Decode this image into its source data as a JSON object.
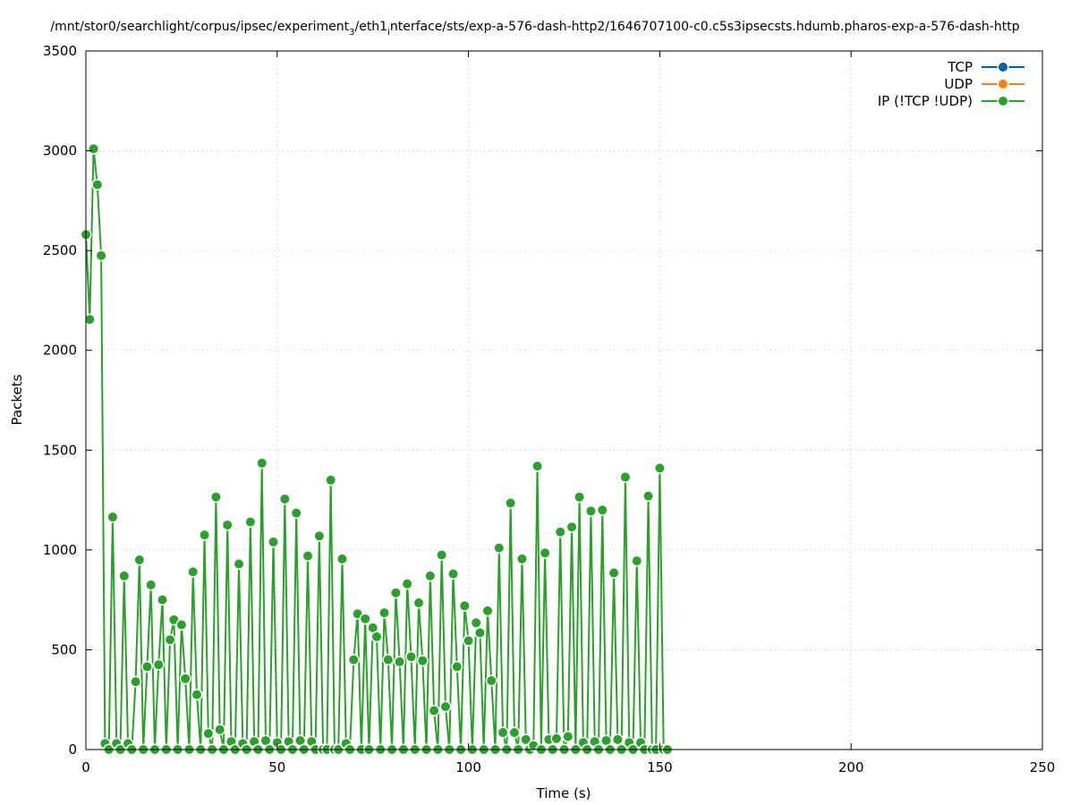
{
  "chart_data": {
    "type": "line",
    "title": "/mnt/stor0/searchlight/corpus/ipsec/experiment_3/eth1_interface/sts/exp-a-576-dash-http2/1646707100-c0.c5s3ipsecsts.hdumb.pharos-exp-a-576-dash-http",
    "title_parts": [
      "/mnt/stor0/searchlight/corpus/ipsec/experiment",
      "3",
      "/eth1",
      "i",
      "nterface/sts/exp-a-576-dash-http2/1646707100-c0.c5s3ipsecsts.hdumb.pharos-exp-a-576-dash-http"
    ],
    "xlabel": "Time (s)",
    "ylabel": "Packets",
    "xlim": [
      0,
      250
    ],
    "ylim": [
      0,
      3500
    ],
    "xticks": [
      0,
      50,
      100,
      150,
      200,
      250
    ],
    "yticks": [
      0,
      500,
      1000,
      1500,
      2000,
      2500,
      3000,
      3500
    ],
    "grid": true,
    "legend_position": "top-right",
    "series": [
      {
        "name": "TCP",
        "color": "#0060ad",
        "points": []
      },
      {
        "name": "UDP",
        "color": "#ff7f0e",
        "points": []
      },
      {
        "name": "IP (!TCP  !UDP)",
        "color": "#2ca02c",
        "points": [
          [
            0,
            2580
          ],
          [
            1,
            2155
          ],
          [
            2,
            3010
          ],
          [
            3,
            2830
          ],
          [
            4,
            2475
          ],
          [
            5,
            30
          ],
          [
            6,
            0
          ],
          [
            7,
            1165
          ],
          [
            8,
            30
          ],
          [
            9,
            0
          ],
          [
            10,
            870
          ],
          [
            11,
            30
          ],
          [
            12,
            0
          ],
          [
            13,
            340
          ],
          [
            14,
            950
          ],
          [
            15,
            0
          ],
          [
            16,
            415
          ],
          [
            17,
            825
          ],
          [
            18,
            0
          ],
          [
            19,
            425
          ],
          [
            20,
            750
          ],
          [
            21,
            0
          ],
          [
            22,
            550
          ],
          [
            23,
            650
          ],
          [
            24,
            0
          ],
          [
            25,
            625
          ],
          [
            26,
            355
          ],
          [
            27,
            0
          ],
          [
            28,
            890
          ],
          [
            29,
            275
          ],
          [
            30,
            0
          ],
          [
            31,
            1075
          ],
          [
            32,
            80
          ],
          [
            33,
            0
          ],
          [
            34,
            1265
          ],
          [
            35,
            100
          ],
          [
            36,
            0
          ],
          [
            37,
            1125
          ],
          [
            38,
            40
          ],
          [
            39,
            0
          ],
          [
            40,
            930
          ],
          [
            41,
            30
          ],
          [
            42,
            0
          ],
          [
            43,
            1140
          ],
          [
            44,
            40
          ],
          [
            45,
            0
          ],
          [
            46,
            1435
          ],
          [
            47,
            45
          ],
          [
            48,
            0
          ],
          [
            49,
            1040
          ],
          [
            50,
            35
          ],
          [
            51,
            0
          ],
          [
            52,
            1255
          ],
          [
            53,
            40
          ],
          [
            54,
            0
          ],
          [
            55,
            1185
          ],
          [
            56,
            45
          ],
          [
            57,
            0
          ],
          [
            58,
            970
          ],
          [
            59,
            40
          ],
          [
            60,
            0
          ],
          [
            61,
            1070
          ],
          [
            62,
            0
          ],
          [
            63,
            0
          ],
          [
            64,
            1350
          ],
          [
            65,
            0
          ],
          [
            66,
            0
          ],
          [
            67,
            955
          ],
          [
            68,
            30
          ],
          [
            69,
            0
          ],
          [
            70,
            450
          ],
          [
            71,
            680
          ],
          [
            72,
            0
          ],
          [
            73,
            655
          ],
          [
            74,
            0
          ],
          [
            75,
            610
          ],
          [
            76,
            565
          ],
          [
            77,
            0
          ],
          [
            78,
            685
          ],
          [
            79,
            450
          ],
          [
            80,
            0
          ],
          [
            81,
            785
          ],
          [
            82,
            440
          ],
          [
            83,
            0
          ],
          [
            84,
            830
          ],
          [
            85,
            465
          ],
          [
            86,
            0
          ],
          [
            87,
            735
          ],
          [
            88,
            445
          ],
          [
            89,
            0
          ],
          [
            90,
            870
          ],
          [
            91,
            195
          ],
          [
            92,
            0
          ],
          [
            93,
            975
          ],
          [
            94,
            215
          ],
          [
            95,
            0
          ],
          [
            96,
            880
          ],
          [
            97,
            415
          ],
          [
            98,
            0
          ],
          [
            99,
            720
          ],
          [
            100,
            545
          ],
          [
            101,
            0
          ],
          [
            102,
            635
          ],
          [
            103,
            585
          ],
          [
            104,
            0
          ],
          [
            105,
            695
          ],
          [
            106,
            345
          ],
          [
            107,
            0
          ],
          [
            108,
            1010
          ],
          [
            109,
            85
          ],
          [
            110,
            0
          ],
          [
            111,
            1235
          ],
          [
            112,
            85
          ],
          [
            113,
            0
          ],
          [
            114,
            955
          ],
          [
            115,
            50
          ],
          [
            116,
            0
          ],
          [
            117,
            20
          ],
          [
            118,
            1420
          ],
          [
            119,
            0
          ],
          [
            120,
            985
          ],
          [
            121,
            50
          ],
          [
            122,
            0
          ],
          [
            123,
            55
          ],
          [
            124,
            1090
          ],
          [
            125,
            0
          ],
          [
            126,
            65
          ],
          [
            127,
            1115
          ],
          [
            128,
            0
          ],
          [
            129,
            1265
          ],
          [
            130,
            35
          ],
          [
            131,
            0
          ],
          [
            132,
            1195
          ],
          [
            133,
            40
          ],
          [
            134,
            0
          ],
          [
            135,
            1200
          ],
          [
            136,
            45
          ],
          [
            137,
            0
          ],
          [
            138,
            885
          ],
          [
            139,
            50
          ],
          [
            140,
            0
          ],
          [
            141,
            1365
          ],
          [
            142,
            35
          ],
          [
            143,
            0
          ],
          [
            144,
            945
          ],
          [
            145,
            35
          ],
          [
            146,
            0
          ],
          [
            147,
            1270
          ],
          [
            148,
            0
          ],
          [
            149,
            0
          ],
          [
            150,
            1410
          ],
          [
            151,
            0
          ],
          [
            152,
            0
          ]
        ]
      }
    ]
  }
}
